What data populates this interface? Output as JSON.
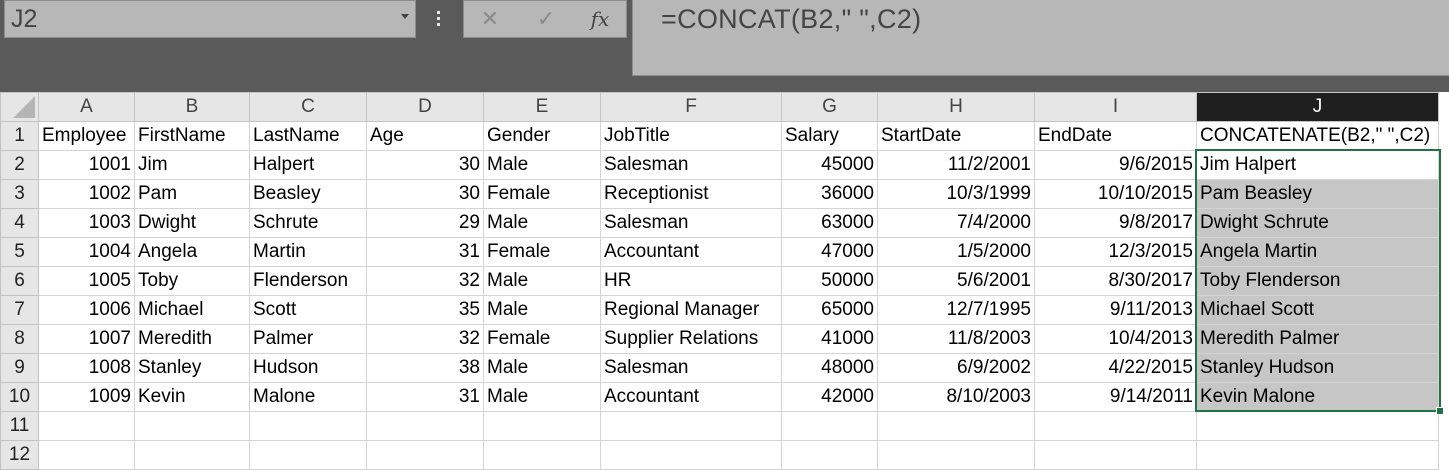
{
  "name_box": {
    "value": "J2"
  },
  "formula_bar": {
    "cancel_glyph": "✕",
    "enter_glyph": "✓",
    "fx_label": "fx",
    "formula": "=CONCAT(B2,\" \",C2)"
  },
  "columns": [
    "A",
    "B",
    "C",
    "D",
    "E",
    "F",
    "G",
    "H",
    "I",
    "J"
  ],
  "active_column": "J",
  "header_row": [
    "Employee",
    "FirstName",
    "LastName",
    "Age",
    "Gender",
    "JobTitle",
    "Salary",
    "StartDate",
    "EndDate",
    "CONCATENATE(B2,\" \",C2)"
  ],
  "rows": [
    [
      "1001",
      "Jim",
      "Halpert",
      "30",
      "Male",
      "Salesman",
      "45000",
      "11/2/2001",
      "9/6/2015",
      "Jim Halpert"
    ],
    [
      "1002",
      "Pam",
      "Beasley",
      "30",
      "Female",
      "Receptionist",
      "36000",
      "10/3/1999",
      "10/10/2015",
      "Pam Beasley"
    ],
    [
      "1003",
      "Dwight",
      "Schrute",
      "29",
      "Male",
      "Salesman",
      "63000",
      "7/4/2000",
      "9/8/2017",
      "Dwight Schrute"
    ],
    [
      "1004",
      "Angela",
      "Martin",
      "31",
      "Female",
      "Accountant",
      "47000",
      "1/5/2000",
      "12/3/2015",
      "Angela Martin"
    ],
    [
      "1005",
      "Toby",
      "Flenderson",
      "32",
      "Male",
      "HR",
      "50000",
      "5/6/2001",
      "8/30/2017",
      "Toby Flenderson"
    ],
    [
      "1006",
      "Michael",
      "Scott",
      "35",
      "Male",
      "Regional Manager",
      "65000",
      "12/7/1995",
      "9/11/2013",
      "Michael Scott"
    ],
    [
      "1007",
      "Meredith",
      "Palmer",
      "32",
      "Female",
      "Supplier Relations",
      "41000",
      "11/8/2003",
      "10/4/2013",
      "Meredith Palmer"
    ],
    [
      "1008",
      "Stanley",
      "Hudson",
      "38",
      "Male",
      "Salesman",
      "48000",
      "6/9/2002",
      "4/22/2015",
      "Stanley Hudson"
    ],
    [
      "1009",
      "Kevin",
      "Malone",
      "31",
      "Male",
      "Accountant",
      "42000",
      "8/10/2003",
      "9/14/2011",
      "Kevin Malone"
    ]
  ],
  "row_numbers": [
    "1",
    "2",
    "3",
    "4",
    "5",
    "6",
    "7",
    "8",
    "9",
    "10",
    "11",
    "12"
  ],
  "colors": {
    "selection_border": "#217346",
    "selection_fill": "#c6c6c6",
    "header_bg": "#e6e6e6",
    "active_header_bg": "#1f1f1f"
  }
}
